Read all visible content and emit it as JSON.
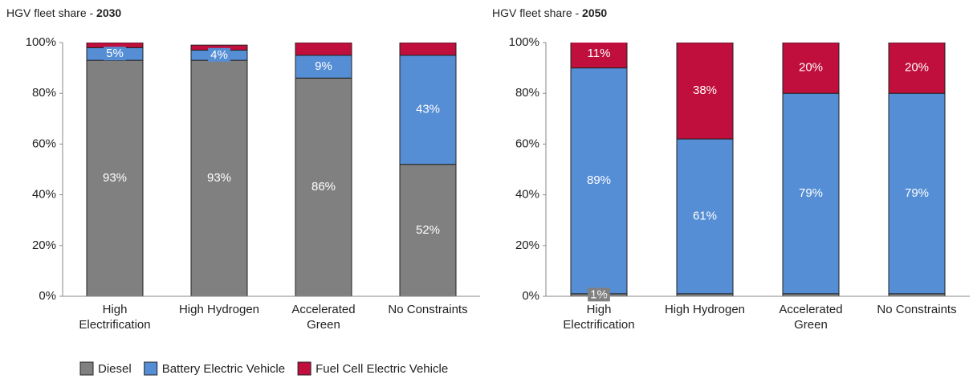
{
  "chart_data": [
    {
      "type": "stacked_bar",
      "title": "HGV fleet share -",
      "title_emphasis": "2030",
      "categories": [
        "High Electrification",
        "High Hydrogen",
        "Accelerated Green",
        "No Constraints"
      ],
      "series": [
        {
          "name": "Diesel",
          "color": "#808080",
          "values": [
            93,
            93,
            86,
            52
          ],
          "value_labels": [
            "93%",
            "93%",
            "86%",
            "52%"
          ]
        },
        {
          "name": "Battery Electric Vehicle",
          "color": "#558ed5",
          "values": [
            5,
            4,
            9,
            43
          ],
          "value_labels": [
            "5%",
            "4%",
            "9%",
            "43%"
          ]
        },
        {
          "name": "Fuel Cell Electric Vehicle",
          "color": "#c00f3c",
          "values": [
            2,
            2,
            5,
            5
          ],
          "value_labels": [
            null,
            null,
            null,
            null
          ]
        }
      ],
      "ylim": [
        0,
        100
      ],
      "yticks": [
        {
          "value": 0,
          "label": "0%"
        },
        {
          "value": 20,
          "label": "20%"
        },
        {
          "value": 40,
          "label": "40%"
        },
        {
          "value": 60,
          "label": "60%"
        },
        {
          "value": 80,
          "label": "80%"
        },
        {
          "value": 100,
          "label": "100%"
        }
      ]
    },
    {
      "type": "stacked_bar",
      "title": "HGV fleet share -",
      "title_emphasis": "2050",
      "categories": [
        "High Electrification",
        "High Hydrogen",
        "Accelerated Green",
        "No Constraints"
      ],
      "series": [
        {
          "name": "Diesel",
          "color": "#808080",
          "values": [
            1,
            1,
            1,
            1
          ],
          "value_labels": [
            "1%",
            null,
            null,
            null
          ]
        },
        {
          "name": "Battery Electric Vehicle",
          "color": "#558ed5",
          "values": [
            89,
            61,
            79,
            79
          ],
          "value_labels": [
            "89%",
            "61%",
            "79%",
            "79%"
          ]
        },
        {
          "name": "Fuel Cell Electric Vehicle",
          "color": "#c00f3c",
          "values": [
            11,
            38,
            20,
            20
          ],
          "value_labels": [
            "11%",
            "38%",
            "20%",
            "20%"
          ]
        }
      ],
      "ylim": [
        0,
        100
      ],
      "yticks": [
        {
          "value": 0,
          "label": "0%"
        },
        {
          "value": 20,
          "label": "20%"
        },
        {
          "value": 40,
          "label": "40%"
        },
        {
          "value": 60,
          "label": "60%"
        },
        {
          "value": 80,
          "label": "80%"
        },
        {
          "value": 100,
          "label": "100%"
        }
      ]
    }
  ]
}
